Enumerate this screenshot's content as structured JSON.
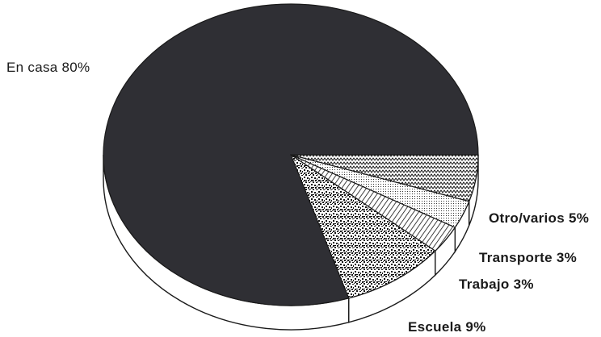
{
  "chart_data": {
    "type": "pie",
    "title": "",
    "slices": [
      {
        "label": "En casa 80%",
        "value": 80,
        "color": "#2f2f34",
        "fill": "solid"
      },
      {
        "label": "Escuela 9%",
        "value": 9,
        "color": "#1a1a1a",
        "fill": "speckle"
      },
      {
        "label": "Trabajo 3%",
        "value": 3,
        "color": "#1a1a1a",
        "fill": "diagonal-lines"
      },
      {
        "label": "Transporte 3%",
        "value": 3,
        "color": "#1a1a1a",
        "fill": "dots"
      },
      {
        "label": "Otro/varios 5%",
        "value": 5,
        "color": "#1a1a1a",
        "fill": "zigzag"
      }
    ]
  }
}
